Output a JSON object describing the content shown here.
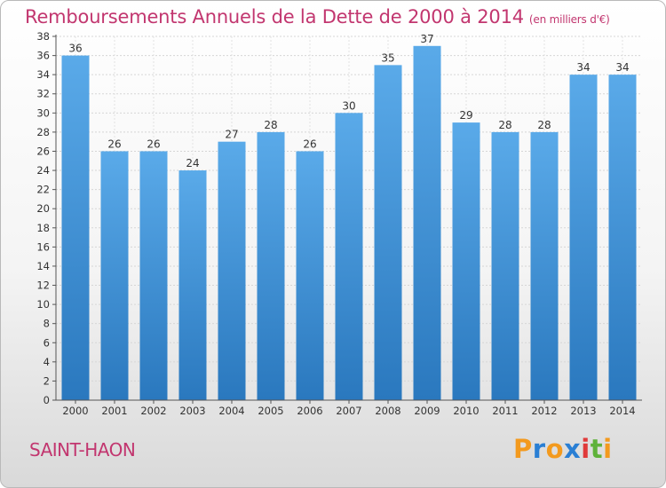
{
  "chart_data": {
    "type": "bar",
    "title": "Remboursements Annuels de la Dette de 2000 à 2014",
    "unit": "(en milliers d'€)",
    "categories": [
      "2000",
      "2001",
      "2002",
      "2003",
      "2004",
      "2005",
      "2006",
      "2007",
      "2008",
      "2009",
      "2010",
      "2011",
      "2012",
      "2013",
      "2014"
    ],
    "values": [
      36,
      26,
      26,
      24,
      27,
      28,
      26,
      30,
      35,
      37,
      29,
      28,
      28,
      34,
      34
    ],
    "ylim": [
      0,
      38
    ],
    "yticks": [
      0,
      2,
      4,
      6,
      8,
      10,
      12,
      14,
      16,
      18,
      20,
      22,
      24,
      26,
      28,
      30,
      32,
      34,
      36,
      38
    ],
    "grid": true,
    "bar_color": "#3a8fd6"
  },
  "commune": "SAINT-HAON",
  "logo": {
    "letters": [
      "P",
      "r",
      "o",
      "x",
      "i",
      "t",
      "i"
    ],
    "colors": [
      "#f39a1e",
      "#2a7fd4",
      "#f39a1e",
      "#2a7fd4",
      "#e03a3a",
      "#5fb23a",
      "#f39a1e"
    ]
  }
}
